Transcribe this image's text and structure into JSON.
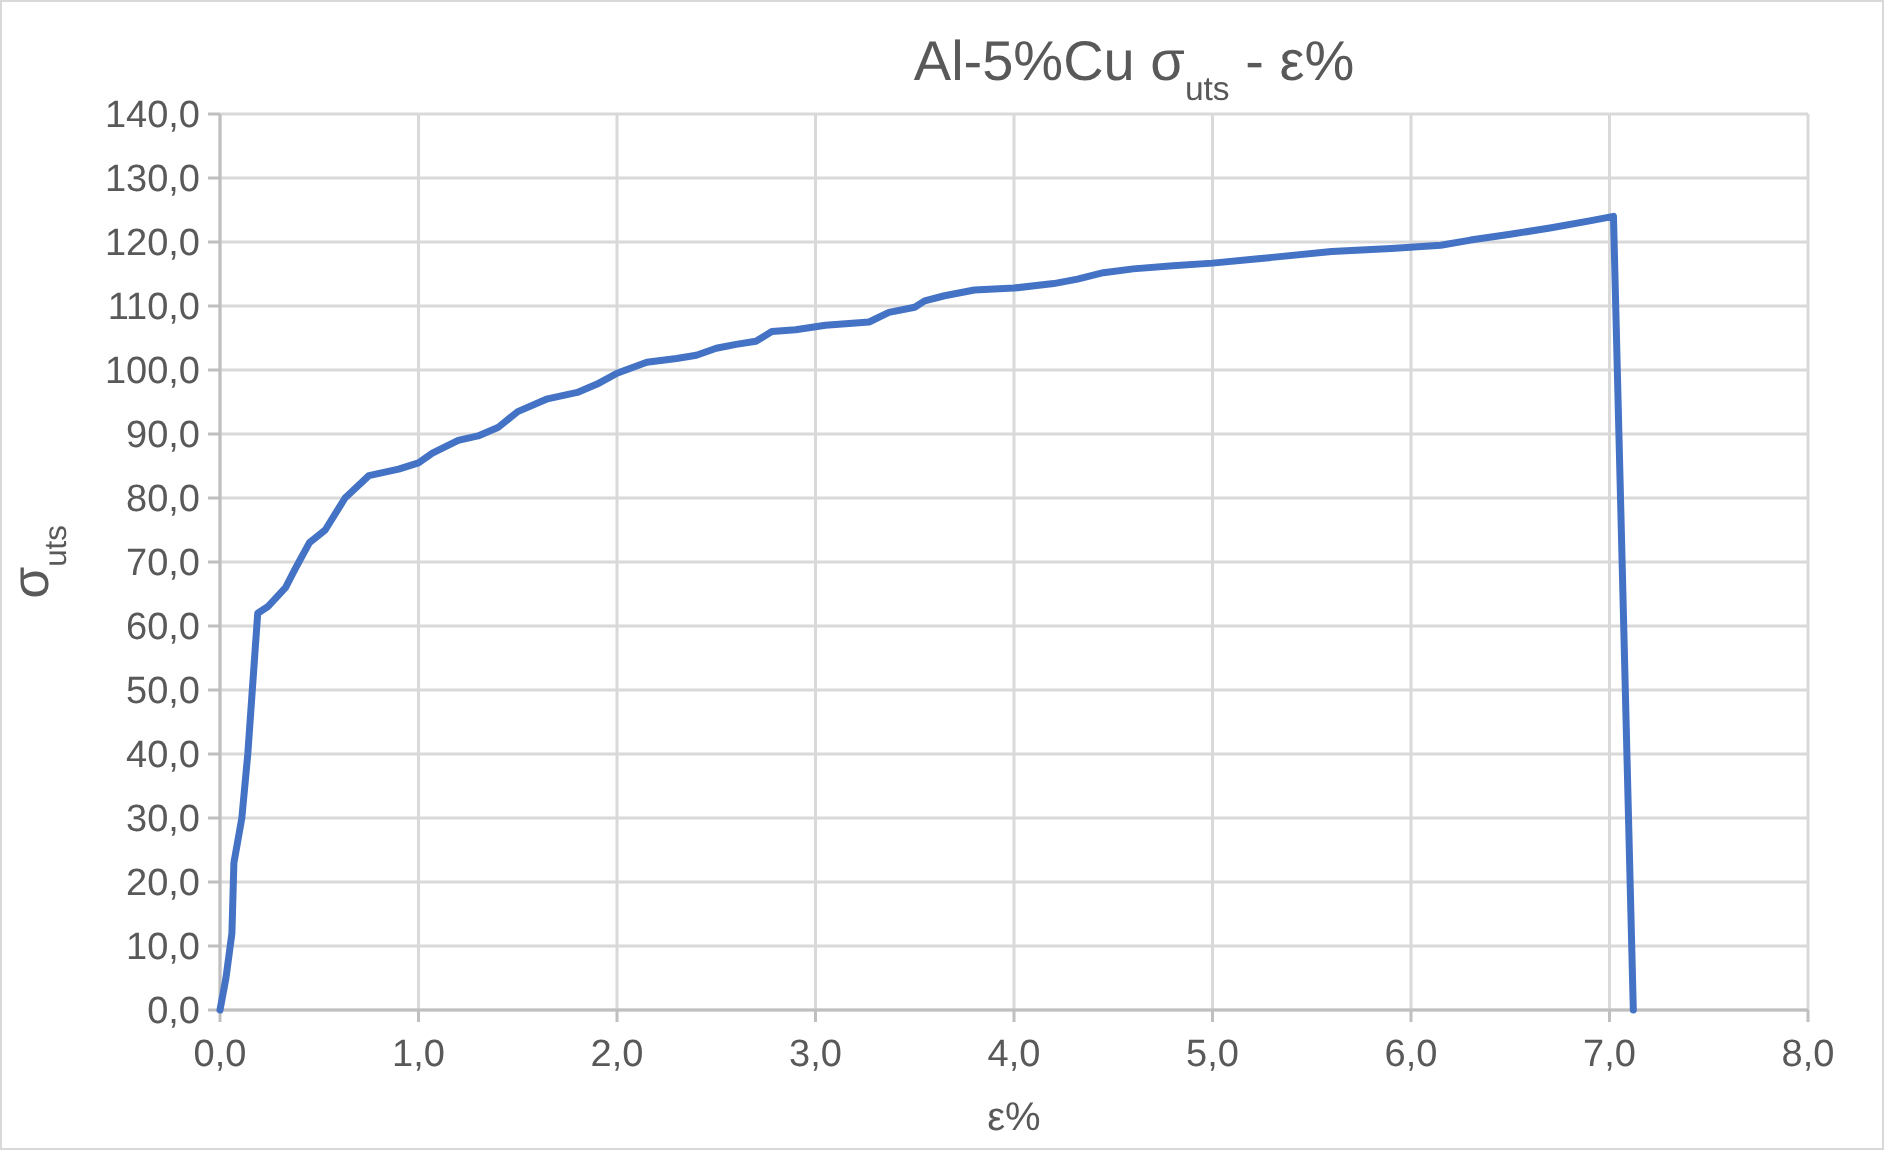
{
  "chart_data": {
    "type": "line",
    "title": "Al-5%Cu σ$_{uts}$ - ε%",
    "xlabel": "ε%",
    "ylabel": "σ$_{uts}$",
    "x": [
      0,
      0.03,
      0.06,
      0.07,
      0.11,
      0.14,
      0.19,
      0.24,
      0.33,
      0.38,
      0.45,
      0.53,
      0.63,
      0.75,
      0.9,
      1.0,
      1.07,
      1.2,
      1.3,
      1.4,
      1.5,
      1.65,
      1.8,
      1.9,
      2.0,
      2.15,
      2.3,
      2.4,
      2.5,
      2.6,
      2.7,
      2.78,
      2.9,
      3.05,
      3.27,
      3.37,
      3.5,
      3.55,
      3.65,
      3.8,
      4.0,
      4.2,
      4.32,
      4.45,
      4.6,
      4.8,
      5.0,
      5.3,
      5.6,
      5.9,
      6.15,
      6.3,
      6.5,
      6.7,
      6.9,
      7.02,
      7.12
    ],
    "series": [
      {
        "color": "#4472c4",
        "values": [
          0,
          5,
          12,
          23,
          30,
          40,
          62,
          63,
          66,
          69,
          73,
          75,
          80,
          83.5,
          84.5,
          85.5,
          87,
          89,
          89.7,
          91,
          93.5,
          95.5,
          96.5,
          97.8,
          99.5,
          101.2,
          101.8,
          102.3,
          103.4,
          104,
          104.5,
          106,
          106.3,
          107,
          107.5,
          109,
          109.8,
          110.8,
          111.6,
          112.5,
          112.8,
          113.5,
          114.2,
          115.2,
          115.8,
          116.3,
          116.7,
          117.6,
          118.5,
          119,
          119.5,
          120.3,
          121.2,
          122.2,
          123.3,
          124,
          0
        ]
      }
    ],
    "xlim": [
      0,
      8
    ],
    "ylim": [
      0,
      140
    ],
    "xticks": [
      {
        "value": 0,
        "label": "0,0"
      },
      {
        "value": 1,
        "label": "1,0"
      },
      {
        "value": 2,
        "label": "2,0"
      },
      {
        "value": 3,
        "label": "3,0"
      },
      {
        "value": 4,
        "label": "4,0"
      },
      {
        "value": 5,
        "label": "5,0"
      },
      {
        "value": 6,
        "label": "6,0"
      },
      {
        "value": 7,
        "label": "7,0"
      },
      {
        "value": 8,
        "label": "8,0"
      }
    ],
    "yticks": [
      {
        "value": 0,
        "label": "0,0"
      },
      {
        "value": 10,
        "label": "10,0"
      },
      {
        "value": 20,
        "label": "20,0"
      },
      {
        "value": 30,
        "label": "30,0"
      },
      {
        "value": 40,
        "label": "40,0"
      },
      {
        "value": 50,
        "label": "50,0"
      },
      {
        "value": 60,
        "label": "60,0"
      },
      {
        "value": 70,
        "label": "70,0"
      },
      {
        "value": 80,
        "label": "80,0"
      },
      {
        "value": 90,
        "label": "90,0"
      },
      {
        "value": 100,
        "label": "100,0"
      },
      {
        "value": 110,
        "label": "110,0"
      },
      {
        "value": 120,
        "label": "120,0"
      },
      {
        "value": 130,
        "label": "130,0"
      },
      {
        "value": 140,
        "label": "140,0"
      }
    ],
    "grid": true,
    "line_style": "solid",
    "marker": "none"
  }
}
